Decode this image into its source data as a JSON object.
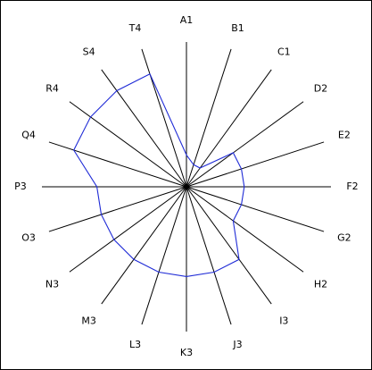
{
  "chart_data": {
    "type": "radar",
    "title": "",
    "axes": [
      "A1",
      "B1",
      "C1",
      "D2",
      "E2",
      "F2",
      "G2",
      "H2",
      "I3",
      "J3",
      "K3",
      "L3",
      "M3",
      "N3",
      "O3",
      "P3",
      "Q4",
      "R4",
      "S4",
      "T4"
    ],
    "max_radius_value": 1.0,
    "series": [
      {
        "name": "",
        "color": "#1f2bd6",
        "values": [
          0.22,
          0.16,
          0.16,
          0.4,
          0.4,
          0.4,
          0.4,
          0.4,
          0.62,
          0.62,
          0.62,
          0.62,
          0.62,
          0.62,
          0.62,
          0.62,
          0.82,
          0.82,
          0.82,
          0.82
        ]
      }
    ]
  }
}
